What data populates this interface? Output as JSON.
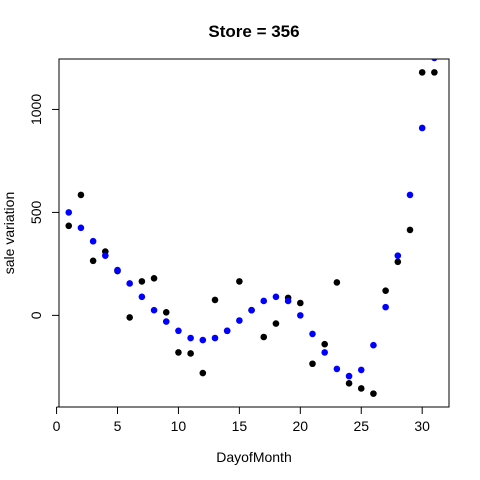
{
  "chart_data": {
    "type": "scatter",
    "title": "Store = 356",
    "xlabel": "DayofMonth",
    "ylabel": "sale variation",
    "xlim": [
      0.2,
      32.2
    ],
    "ylim": [
      -445,
      1245
    ],
    "x_ticks": [
      0,
      5,
      10,
      15,
      20,
      25,
      30
    ],
    "y_ticks": [
      0,
      500,
      1000
    ],
    "grid": false,
    "legend": "none",
    "series": [
      {
        "color": "#000000",
        "points": [
          [
            1,
            435
          ],
          [
            2,
            585
          ],
          [
            3,
            265
          ],
          [
            4,
            310
          ],
          [
            5,
            215
          ],
          [
            6,
            -10
          ],
          [
            7,
            165
          ],
          [
            8,
            180
          ],
          [
            9,
            15
          ],
          [
            10,
            -180
          ],
          [
            11,
            -185
          ],
          [
            12,
            -280
          ],
          [
            13,
            75
          ],
          [
            14,
            -75
          ],
          [
            15,
            165
          ],
          [
            16,
            25
          ],
          [
            17,
            -105
          ],
          [
            18,
            -40
          ],
          [
            19,
            85
          ],
          [
            20,
            60
          ],
          [
            21,
            -235
          ],
          [
            22,
            -140
          ],
          [
            23,
            160
          ],
          [
            24,
            -330
          ],
          [
            25,
            -355
          ],
          [
            26,
            -380
          ],
          [
            27,
            120
          ],
          [
            28,
            260
          ],
          [
            29,
            415
          ],
          [
            30,
            1180
          ],
          [
            31,
            1180
          ]
        ]
      },
      {
        "color": "#0000ff",
        "points": [
          [
            1,
            500
          ],
          [
            2,
            425
          ],
          [
            3,
            360
          ],
          [
            4,
            290
          ],
          [
            5,
            220
          ],
          [
            6,
            155
          ],
          [
            7,
            90
          ],
          [
            8,
            25
          ],
          [
            9,
            -30
          ],
          [
            10,
            -75
          ],
          [
            11,
            -110
          ],
          [
            12,
            -120
          ],
          [
            13,
            -110
          ],
          [
            14,
            -75
          ],
          [
            15,
            -25
          ],
          [
            16,
            25
          ],
          [
            17,
            70
          ],
          [
            18,
            90
          ],
          [
            19,
            70
          ],
          [
            20,
            0
          ],
          [
            21,
            -90
          ],
          [
            22,
            -180
          ],
          [
            23,
            -260
          ],
          [
            24,
            -295
          ],
          [
            25,
            -265
          ],
          [
            26,
            -145
          ],
          [
            27,
            40
          ],
          [
            28,
            290
          ],
          [
            29,
            585
          ],
          [
            30,
            910
          ],
          [
            31,
            1250
          ]
        ]
      }
    ]
  }
}
